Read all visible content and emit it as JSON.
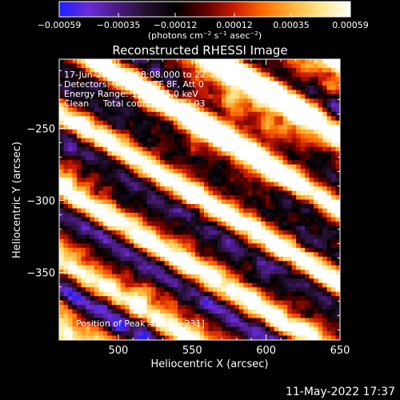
{
  "chart_data": {
    "type": "heatmap",
    "title": "Reconstructed RHESSI Image",
    "xlabel": "Heliocentric X (arcsec)",
    "ylabel": "Heliocentric Y (arcsec)",
    "xlim": [
      460,
      650
    ],
    "ylim": [
      -397,
      -202
    ],
    "xticks": [
      500,
      550,
      600,
      650
    ],
    "yticks": [
      -250,
      -300,
      -350
    ],
    "xtick_labels": [
      "500",
      "550",
      "600",
      "650"
    ],
    "ytick_labels": [
      "−250",
      "−300",
      "−350"
    ],
    "colorbar": {
      "range": [
        -0.00059,
        0.00059
      ],
      "tick_labels": [
        "−0.00059",
        "−0.00035",
        "−0.00012",
        "0.00012",
        "0.00035",
        "0.00059"
      ],
      "unit_parts": [
        "(photons cm",
        "−2",
        " s",
        "−1",
        " asec",
        "−2",
        ")"
      ],
      "stops": [
        "#1b1fff",
        "#6a2bd6",
        "#4a1a80",
        "#23102e",
        "#000000",
        "#5a0000",
        "#c81a00",
        "#ff6a00",
        "#ffb43a",
        "#ffe890",
        "#ffffff"
      ]
    },
    "annotations": {
      "time_range": "17-Jun-2012 22:08:08.000 to 22:11:24.000",
      "detectors": "Detectors: 3F 5F 6F 7F 8F, Att 0",
      "energy": "Energy Range: 12.0 - 25.0 keV",
      "clean": "Clean     Total counts: 2.55E+03",
      "peak": "Position of Peak = [592,-231]"
    },
    "image_model": {
      "grid": 64,
      "stripe_angle_deg": 32,
      "stripe_period_arcsec": 42,
      "bright_bias": 0.16,
      "seed": 7
    }
  },
  "footer": {
    "timestamp": "11-May-2022 17:37"
  }
}
